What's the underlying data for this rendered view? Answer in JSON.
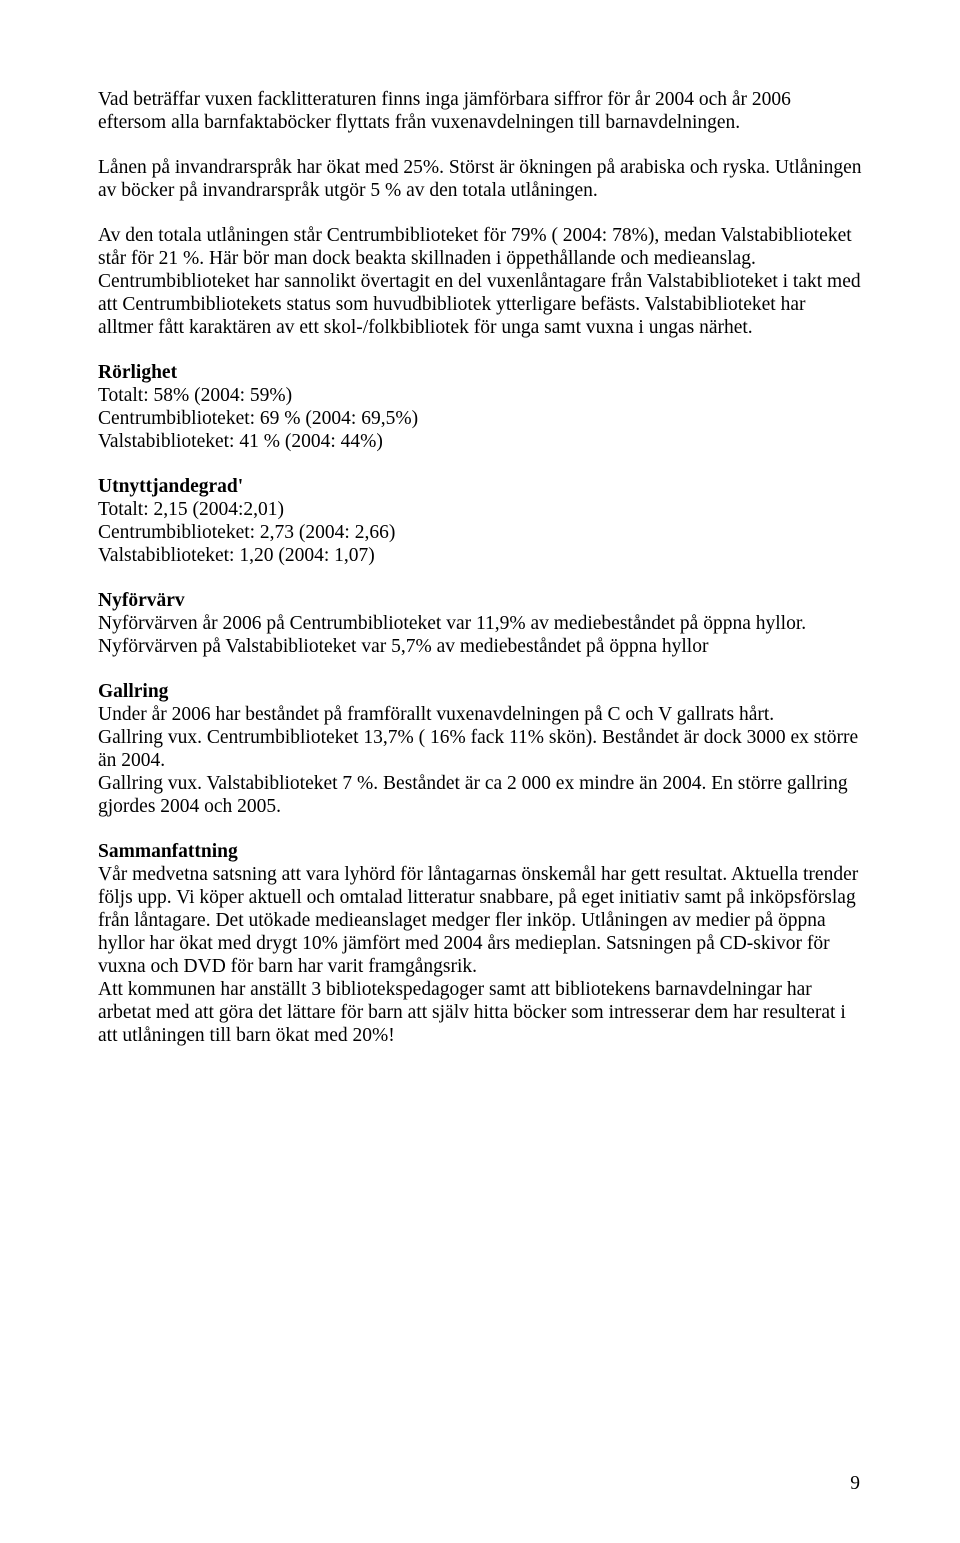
{
  "paragraphs": {
    "p1": "Vad beträffar vuxen facklitteraturen finns inga jämförbara siffror för år 2004 och år 2006 eftersom alla barnfaktaböcker flyttats från vuxenavdelningen till barnavdelningen.",
    "p2": "Lånen på invandrarspråk har ökat med 25%. Störst är ökningen på arabiska och ryska. Utlåningen av böcker på invandrarspråk utgör 5 % av den totala utlåningen.",
    "p3": "Av den totala utlåningen står Centrumbiblioteket för 79% ( 2004: 78%), medan Valstabiblioteket står för 21 %. Här bör man dock beakta skillnaden i öppethållande och medieanslag.",
    "p4": "Centrumbiblioteket har sannolikt övertagit en del vuxenlåntagare från Valstabiblioteket i takt med att Centrumbibliotekets status som huvudbibliotek ytterligare befästs. Valstabiblioteket har alltmer fått karaktären av ett skol-/folkbibliotek för unga samt vuxna i ungas närhet."
  },
  "rorlighet": {
    "heading": "Rörlighet",
    "lines": [
      "Totalt: 58% (2004: 59%)",
      "Centrumbiblioteket: 69 % (2004: 69,5%)",
      "Valstabiblioteket: 41 % (2004: 44%)"
    ]
  },
  "utnyttjandegrad": {
    "heading": "Utnyttjandegrad'",
    "lines": [
      "Totalt: 2,15 (2004:2,01)",
      "Centrumbiblioteket: 2,73 (2004: 2,66)",
      "Valstabiblioteket: 1,20 (2004: 1,07)"
    ]
  },
  "nyforvarv": {
    "heading": "Nyförvärv",
    "lines": [
      "Nyförvärven år 2006 på Centrumbiblioteket var 11,9% av mediebeståndet på öppna hyllor.",
      "Nyförvärven på Valstabiblioteket var 5,7% av mediebeståndet på öppna hyllor"
    ]
  },
  "gallring": {
    "heading": "Gallring",
    "lines": [
      "Under år 2006 har beståndet på framförallt vuxenavdelningen på C och V gallrats hårt.",
      "Gallring vux. Centrumbiblioteket 13,7% ( 16% fack 11% skön). Beståndet är dock 3000 ex större än 2004.",
      "Gallring vux. Valstabiblioteket 7 %. Beståndet är ca 2 000 ex mindre än 2004. En större gallring gjordes 2004 och 2005."
    ]
  },
  "sammanfattning": {
    "heading": "Sammanfattning",
    "body": "Vår medvetna satsning att vara lyhörd för låntagarnas önskemål har gett resultat. Aktuella trender följs upp. Vi köper aktuell och omtalad litteratur snabbare, på eget initiativ samt på inköpsförslag från låntagare. Det utökade medieanslaget medger fler inköp. Utlåningen av medier på öppna hyllor har ökat med drygt 10% jämfört med 2004 års medieplan. Satsningen på CD-skivor för vuxna och DVD för barn har varit framgångsrik.",
    "body2": "Att kommunen har anställt 3 bibliotekspedagoger samt att bibliotekens barnavdelningar har arbetat med att göra det lättare för barn att själv hitta böcker som intresserar dem har resulterat i att utlåningen till barn ökat med 20%!"
  },
  "page_number": "9"
}
